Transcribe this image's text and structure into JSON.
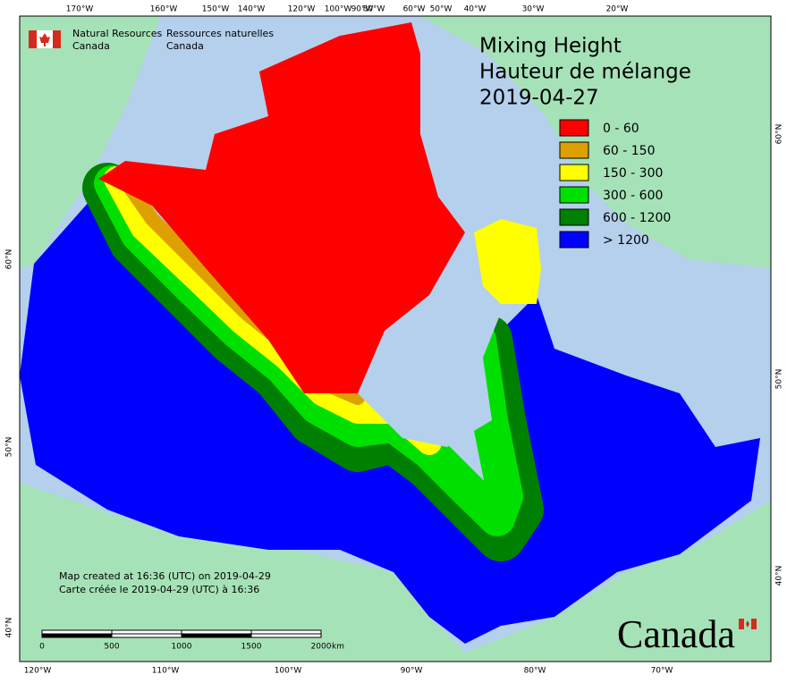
{
  "header": {
    "agency_en": [
      "Natural Resources",
      "Canada"
    ],
    "agency_fr": [
      "Ressources naturelles",
      "Canada"
    ]
  },
  "title": [
    "Mixing Height",
    "Hauteur de mélange",
    "2019-04-27"
  ],
  "legend": [
    {
      "label": "0 - 60",
      "color": "#ff0000"
    },
    {
      "label": "60 - 150",
      "color": "#dda000"
    },
    {
      "label": "150 - 300",
      "color": "#ffff00"
    },
    {
      "label": "300 - 600",
      "color": "#00e000"
    },
    {
      "label": "600 - 1200",
      "color": "#008000"
    },
    {
      "label": "> 1200",
      "color": "#0000ff"
    }
  ],
  "graticule": {
    "top": [
      "170°W",
      "160°W",
      "150°W",
      "140°W",
      "120°W",
      "100°W",
      "90°W",
      "80°W",
      "60°W",
      "50°W",
      "40°W",
      "30°W",
      "20°W"
    ],
    "bottom": [
      "120°W",
      "110°W",
      "100°W",
      "90°W",
      "80°W",
      "70°W"
    ],
    "left": [
      "60°N",
      "50°N",
      "40°N"
    ],
    "right": [
      "60°N",
      "50°N",
      "40°N"
    ]
  },
  "notes": [
    "Map created at 16:36 (UTC) on 2019-04-29",
    "Carte créée le 2019-04-29 (UTC) à 16:36"
  ],
  "scale_bar": {
    "ticks": [
      "0",
      "500",
      "1000",
      "1500",
      "2000"
    ],
    "unit": "km"
  },
  "wordmark": "Canada"
}
